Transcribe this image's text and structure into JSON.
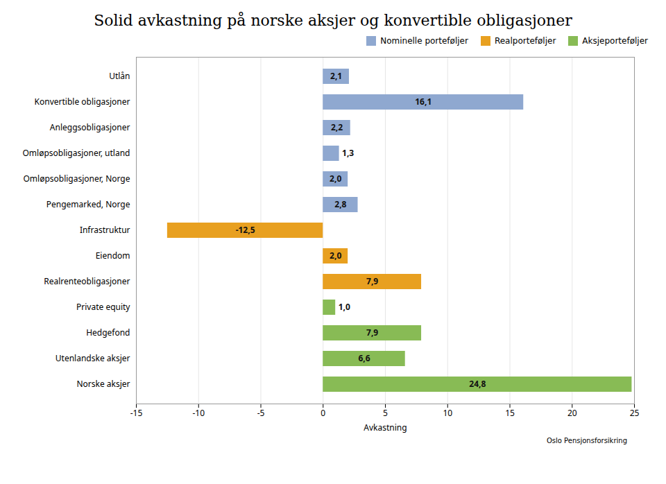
{
  "chart_data": {
    "type": "bar",
    "orientation": "horizontal",
    "title": "Solid avkastning på norske aksjer og konvertible obligasjoner",
    "xlabel": "Avkastning",
    "categories": [
      "Utlån",
      "Konvertible obligasjoner",
      "Anleggsobligasjoner",
      "Omløpsobligasjoner, utland",
      "Omløpsobligasjoner, Norge",
      "Pengemarked, Norge",
      "Infrastruktur",
      "Eiendom",
      "Realrenteobligasjoner",
      "Private equity",
      "Hedgefond",
      "Utenlandske aksjer",
      "Norske aksjer"
    ],
    "series": [
      {
        "name": "Nominelle porteføljer",
        "color": "#8fa8d0",
        "values": [
          2.1,
          16.1,
          2.2,
          1.3,
          2.0,
          2.8,
          null,
          null,
          null,
          null,
          null,
          null,
          null
        ],
        "value_labels": [
          "2,1",
          "16,1",
          "2,2",
          "1,3",
          "2,0",
          "2,8",
          null,
          null,
          null,
          null,
          null,
          null,
          null
        ]
      },
      {
        "name": "Realporteføljer",
        "color": "#e8a020",
        "values": [
          null,
          null,
          null,
          null,
          null,
          null,
          -12.5,
          2.0,
          7.9,
          null,
          null,
          null,
          null
        ],
        "value_labels": [
          null,
          null,
          null,
          null,
          null,
          null,
          "-12,5",
          "2,0",
          "7,9",
          null,
          null,
          null,
          null
        ]
      },
      {
        "name": "Aksjeporteføljer",
        "color": "#88bb55",
        "values": [
          null,
          null,
          null,
          null,
          null,
          null,
          null,
          null,
          null,
          1.0,
          7.9,
          6.6,
          24.8
        ],
        "value_labels": [
          null,
          null,
          null,
          null,
          null,
          null,
          null,
          null,
          null,
          "1,0",
          "7,9",
          "6,6",
          "24,8"
        ]
      }
    ],
    "xlim": [
      -15,
      25
    ],
    "xticks": [
      -15,
      -10,
      -5,
      0,
      5,
      10,
      15,
      20,
      25
    ],
    "grid": true,
    "legend": "upper right",
    "data_labels": true,
    "annotations": [
      "Oslo Pensjonsforsikring"
    ]
  }
}
